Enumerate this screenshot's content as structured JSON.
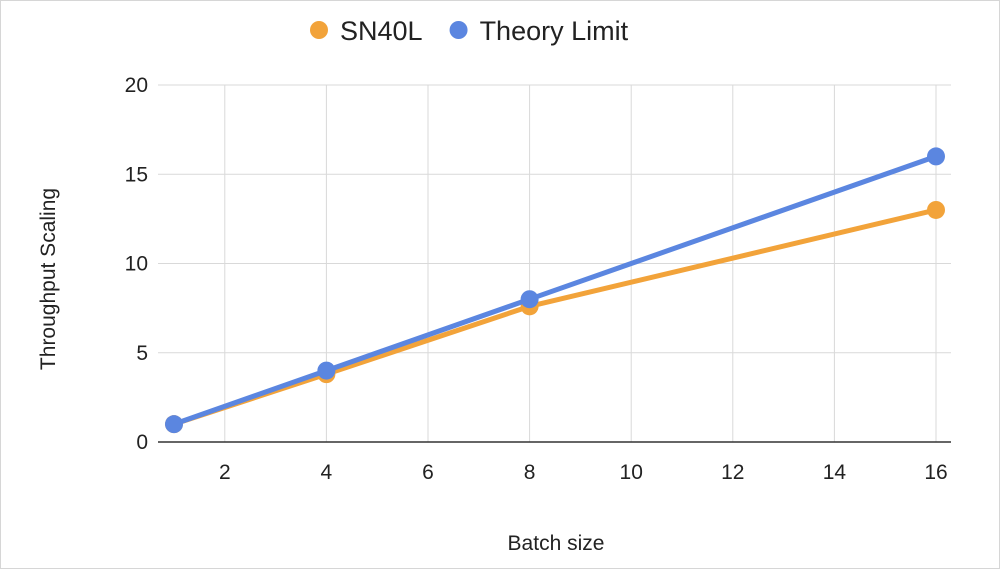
{
  "chart_data": {
    "type": "line",
    "title": "",
    "xlabel": "Batch size",
    "ylabel": "Throughput Scaling",
    "xlim": [
      1,
      16
    ],
    "ylim": [
      0,
      20
    ],
    "x_ticks": [
      2,
      4,
      6,
      8,
      10,
      12,
      14,
      16
    ],
    "y_ticks": [
      0,
      5,
      10,
      15,
      20
    ],
    "x": [
      1,
      4,
      8,
      16
    ],
    "grid": true,
    "legend_position": "top-center",
    "series": [
      {
        "name": "SN40L",
        "color": "#F2A33A",
        "values": [
          1,
          3.8,
          7.6,
          13
        ]
      },
      {
        "name": "Theory Limit",
        "color": "#5B86E0",
        "values": [
          1,
          4,
          8,
          16
        ]
      }
    ]
  }
}
